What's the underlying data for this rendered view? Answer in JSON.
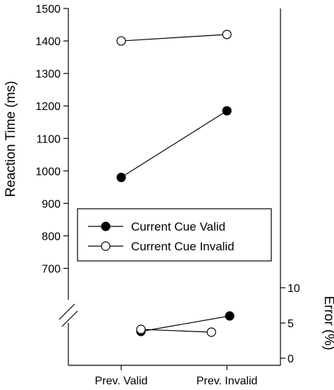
{
  "chart_data": [
    {
      "type": "line",
      "panel": "reaction-time",
      "categories": [
        "Prev. Valid",
        "Prev. Invalid"
      ],
      "ylabel": "Reaction Time (ms)",
      "ylim": [
        600,
        1500
      ],
      "yticks": [
        700,
        800,
        900,
        1000,
        1100,
        1200,
        1300,
        1400,
        1500
      ],
      "axis_break": "bottom-left",
      "series": [
        {
          "name": "Current Cue Valid",
          "marker": "filled-circle",
          "values": [
            980,
            1185
          ]
        },
        {
          "name": "Current Cue Invalid",
          "marker": "open-circle",
          "values": [
            1400,
            1420
          ]
        }
      ],
      "legend": {
        "placement": "middle-center",
        "entries": [
          "Current Cue Valid",
          "Current Cue Invalid"
        ]
      }
    },
    {
      "type": "line",
      "panel": "error",
      "categories": [
        "Prev. Valid",
        "Prev. Invalid"
      ],
      "ylabel": "Error (%)",
      "ylim": [
        0,
        12
      ],
      "yticks": [
        0,
        5,
        10
      ],
      "axis_side": "right",
      "series": [
        {
          "name": "Current Cue Valid",
          "marker": "filled-circle",
          "values": [
            3.8,
            6.0
          ]
        },
        {
          "name": "Current Cue Invalid",
          "marker": "open-circle",
          "values": [
            4.1,
            3.7
          ]
        }
      ]
    }
  ]
}
